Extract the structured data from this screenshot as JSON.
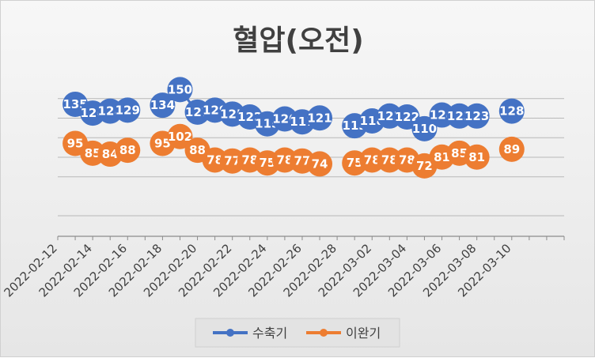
{
  "chart_data": {
    "type": "line",
    "title": "혈압(오전)",
    "xlabel": "",
    "ylabel": "",
    "x_ticks": [
      "2022-02-12",
      "2022-02-14",
      "2022-02-16",
      "2022-02-18",
      "2022-02-20",
      "2022-02-22",
      "2022-02-24",
      "2022-02-26",
      "2022-02-28",
      "2022-03-02",
      "2022-03-04",
      "2022-03-06",
      "2022-03-08",
      "2022-03-10"
    ],
    "ylim": [
      0,
      160
    ],
    "y_gridlines": [
      60,
      80,
      100,
      120,
      140
    ],
    "grid": true,
    "legend_position": "bottom",
    "series": [
      {
        "name": "수축기",
        "color": "#4472C4",
        "points": [
          [
            "2022-02-13",
            135
          ],
          [
            "2022-02-14",
            126
          ],
          [
            "2022-02-15",
            128
          ],
          [
            "2022-02-16",
            129
          ],
          [
            "2022-02-18",
            134
          ],
          [
            "2022-02-19",
            150
          ],
          [
            "2022-02-20",
            127
          ],
          [
            "2022-02-21",
            129
          ],
          [
            "2022-02-22",
            125
          ],
          [
            "2022-02-23",
            122
          ],
          [
            "2022-02-24",
            115
          ],
          [
            "2022-02-25",
            120
          ],
          [
            "2022-02-26",
            117
          ],
          [
            "2022-02-27",
            121
          ],
          [
            "2022-03-01",
            113
          ],
          [
            "2022-03-02",
            118
          ],
          [
            "2022-03-03",
            123
          ],
          [
            "2022-03-04",
            122
          ],
          [
            "2022-03-05",
            110
          ],
          [
            "2022-03-06",
            124
          ],
          [
            "2022-03-07",
            123
          ],
          [
            "2022-03-08",
            123
          ],
          [
            "2022-03-10",
            128
          ]
        ]
      },
      {
        "name": "이완기",
        "color": "#ED7D31",
        "points": [
          [
            "2022-02-13",
            95
          ],
          [
            "2022-02-14",
            85
          ],
          [
            "2022-02-15",
            84
          ],
          [
            "2022-02-16",
            88
          ],
          [
            "2022-02-18",
            95
          ],
          [
            "2022-02-19",
            102
          ],
          [
            "2022-02-20",
            88
          ],
          [
            "2022-02-21",
            78
          ],
          [
            "2022-02-22",
            77
          ],
          [
            "2022-02-23",
            78
          ],
          [
            "2022-02-24",
            75
          ],
          [
            "2022-02-25",
            78
          ],
          [
            "2022-02-26",
            77
          ],
          [
            "2022-02-27",
            74
          ],
          [
            "2022-03-01",
            75
          ],
          [
            "2022-03-02",
            78
          ],
          [
            "2022-03-03",
            78
          ],
          [
            "2022-03-04",
            78
          ],
          [
            "2022-03-05",
            72
          ],
          [
            "2022-03-06",
            81
          ],
          [
            "2022-03-07",
            85
          ],
          [
            "2022-03-08",
            81
          ],
          [
            "2022-03-10",
            89
          ]
        ]
      }
    ]
  }
}
